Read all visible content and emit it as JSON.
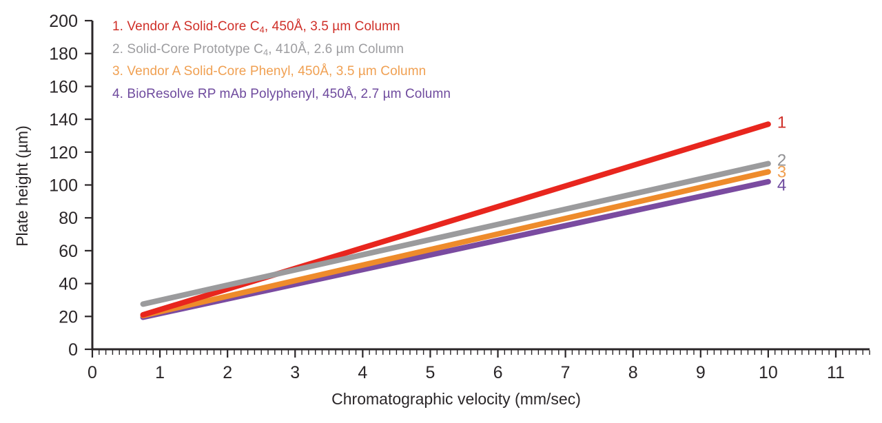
{
  "chart_data": {
    "type": "line",
    "title": "",
    "xlabel": "Chromatographic velocity (mm/sec)",
    "ylabel": "Plate height (µm)",
    "xlim": [
      0,
      11.5
    ],
    "ylim": [
      0,
      200
    ],
    "x_major_ticks": [
      0,
      1,
      2,
      3,
      4,
      5,
      6,
      7,
      8,
      9,
      10,
      11
    ],
    "x_minor_tick_step": 0.1,
    "y_major_ticks": [
      0,
      20,
      40,
      60,
      80,
      100,
      120,
      140,
      160,
      180,
      200
    ],
    "grid": false,
    "legend_position": "top-left",
    "axis_color": "#2a2628",
    "background_color": "#ffffff",
    "series": [
      {
        "end_label": "1",
        "name": "Vendor A Solid-Core C4, 450Å, 3.5 µm Column",
        "color": "#e8261e",
        "label_color": "#cf2f28",
        "x": [
          0.75,
          10
        ],
        "y": [
          21,
          137
        ]
      },
      {
        "end_label": "2",
        "name": "Solid-Core Prototype C4, 410Å, 2.6 µm Column",
        "color": "#9b9b9d",
        "label_color": "#919194",
        "x": [
          0.75,
          10
        ],
        "y": [
          27.5,
          113
        ]
      },
      {
        "end_label": "3",
        "name": "Vendor A Solid-Core Phenyl, 450Å, 3.5 µm Column",
        "color": "#ee8b2b",
        "label_color": "#f0a052",
        "x": [
          0.75,
          10
        ],
        "y": [
          20.5,
          108
        ]
      },
      {
        "end_label": "4",
        "name": "BioResolve RP mAb Polyphenyl, 450Å, 2.7 µm Column",
        "color": "#7a4ba0",
        "label_color": "#6f4b9e",
        "x": [
          0.75,
          10
        ],
        "y": [
          19.5,
          102
        ]
      }
    ],
    "legend": [
      {
        "pre": "1. Vendor A Solid-Core C",
        "sub": "4",
        "post": ", 450Å, 3.5 µm Column",
        "color": "#cf2f28"
      },
      {
        "pre": "2. Solid-Core Prototype C",
        "sub": "4",
        "post": ", 410Å, 2.6 µm Column",
        "color": "#9d9da0"
      },
      {
        "pre": "3. Vendor A Solid-Core Phenyl, 450Å, 3.5 µm Column",
        "sub": "",
        "post": "",
        "color": "#f0a052"
      },
      {
        "pre": "4. BioResolve RP mAb Polyphenyl, 450Å, 2.7 µm Column",
        "sub": "",
        "post": "",
        "color": "#6f4b9e"
      }
    ]
  }
}
